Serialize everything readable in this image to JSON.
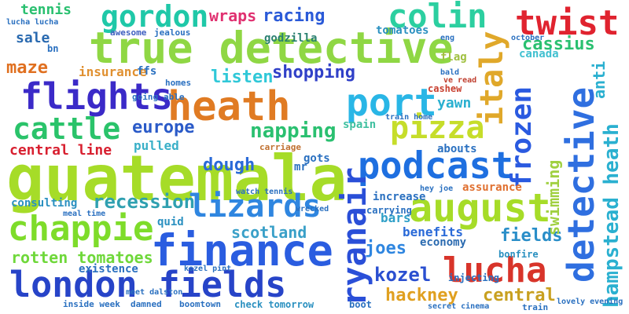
{
  "cloud": {
    "words": [
      {
        "text": "guatemala",
        "color": "#a6dc28"
      },
      {
        "text": "true detective",
        "color": "#8fd744"
      },
      {
        "text": "heath",
        "color": "#e07b23"
      },
      {
        "text": "finance",
        "color": "#2a5de0"
      },
      {
        "text": "london fields",
        "color": "#2744c8"
      },
      {
        "text": "flights",
        "color": "#3b2ac8"
      },
      {
        "text": "podcast",
        "color": "#1e6fe0"
      },
      {
        "text": "august",
        "color": "#a6dc28"
      },
      {
        "text": "port",
        "color": "#29b6e6"
      },
      {
        "text": "pizza",
        "color": "#c6dd2a"
      },
      {
        "text": "lucha",
        "color": "#d8342a"
      },
      {
        "text": "gordon",
        "color": "#1fc8a8"
      },
      {
        "text": "colin",
        "color": "#2ccfa0"
      },
      {
        "text": "twist",
        "color": "#e0232f"
      },
      {
        "text": "chappie",
        "color": "#7edc2a"
      },
      {
        "text": "lizards",
        "color": "#2f86e0"
      },
      {
        "text": "cattle",
        "color": "#2ac36a"
      },
      {
        "text": "ryanair",
        "color": "#2a4fd8"
      },
      {
        "text": "detective",
        "color": "#2f6fe0"
      },
      {
        "text": "frozen",
        "color": "#2a5ae0"
      },
      {
        "text": "italy",
        "color": "#e0a82a"
      },
      {
        "text": "hampstead heath",
        "color": "#2ab0d0"
      },
      {
        "text": "kozel",
        "color": "#2a4fd0"
      },
      {
        "text": "joes",
        "color": "#2f86e0"
      },
      {
        "text": "rotten tomatoes",
        "color": "#6fd83a"
      },
      {
        "text": "recession",
        "color": "#2fa0b0"
      },
      {
        "text": "scotland",
        "color": "#3aa0c8"
      },
      {
        "text": "hackney",
        "color": "#e0a020"
      },
      {
        "text": "central",
        "color": "#c8a020"
      },
      {
        "text": "fields",
        "color": "#2a8ec8"
      },
      {
        "text": "maze",
        "color": "#e07020"
      },
      {
        "text": "europe",
        "color": "#2a5ac8"
      },
      {
        "text": "napping",
        "color": "#2ac070"
      },
      {
        "text": "dough",
        "color": "#2a6ad8"
      },
      {
        "text": "listen",
        "color": "#30c8d8"
      },
      {
        "text": "shopping",
        "color": "#3040c8"
      },
      {
        "text": "central line",
        "color": "#d82030"
      },
      {
        "text": "cassius",
        "color": "#2ac070"
      },
      {
        "text": "racing",
        "color": "#2a5ad8"
      },
      {
        "text": "wraps",
        "color": "#e03070"
      },
      {
        "text": "tennis",
        "color": "#2ac070"
      },
      {
        "text": "sale",
        "color": "#2a6ab0"
      },
      {
        "text": "insurance",
        "color": "#e09030"
      },
      {
        "text": "swimming",
        "color": "#a0d040"
      },
      {
        "text": "anti",
        "color": "#2ab0d0"
      },
      {
        "text": "yawn",
        "color": "#2ab0d0"
      },
      {
        "text": "canada",
        "color": "#40c0d0"
      },
      {
        "text": "assurance",
        "color": "#e07030"
      },
      {
        "text": "bars",
        "color": "#30a0c8"
      },
      {
        "text": "benefits",
        "color": "#2a6ad8"
      },
      {
        "text": "economy",
        "color": "#2a6ab0"
      },
      {
        "text": "pulled",
        "color": "#3ab0c8"
      },
      {
        "text": "consulting",
        "color": "#2a90c0"
      },
      {
        "text": "quid",
        "color": "#2a90c0"
      },
      {
        "text": "existence",
        "color": "#2a70c0"
      },
      {
        "text": "spain",
        "color": "#40c0a0"
      },
      {
        "text": "gots",
        "color": "#2a70c0"
      },
      {
        "text": "abouts",
        "color": "#2a70c0"
      },
      {
        "text": "increase",
        "color": "#2a70c0"
      },
      {
        "text": "carrying",
        "color": "#2a70c0"
      },
      {
        "text": "injecting",
        "color": "#2a70c0"
      },
      {
        "text": "bonfire",
        "color": "#2a90c0"
      },
      {
        "text": "ffs",
        "color": "#2a70c0"
      },
      {
        "text": "cashew",
        "color": "#c84030"
      },
      {
        "text": "flag",
        "color": "#a0c040"
      },
      {
        "text": "tomatoes",
        "color": "#2a90c0"
      },
      {
        "text": "godzilla",
        "color": "#2a8070"
      },
      {
        "text": "awesome",
        "color": "#4060c0"
      },
      {
        "text": "jealous",
        "color": "#2a70c0"
      },
      {
        "text": "going",
        "color": "#2a70c0"
      },
      {
        "text": "able",
        "color": "#2a70c0"
      },
      {
        "text": "homes",
        "color": "#2a70c0"
      },
      {
        "text": "boomtown",
        "color": "#2a70c0"
      },
      {
        "text": "check tomorrow",
        "color": "#2a90c0"
      },
      {
        "text": "watch tennis",
        "color": "#2a70c0"
      },
      {
        "text": "meal time",
        "color": "#2a70c0"
      },
      {
        "text": "inside week",
        "color": "#2a70c0"
      },
      {
        "text": "damned",
        "color": "#2a70c0"
      },
      {
        "text": "hey joe",
        "color": "#2a70c0"
      },
      {
        "text": "lovely evening",
        "color": "#2a70c0"
      },
      {
        "text": "train home",
        "color": "#2a70c0"
      },
      {
        "text": "carriage",
        "color": "#c07030"
      },
      {
        "text": "mr",
        "color": "#2a70c0"
      },
      {
        "text": "eng",
        "color": "#2a70c0"
      },
      {
        "text": "october",
        "color": "#2a70c0"
      },
      {
        "text": "secret cinema",
        "color": "#2a70c0"
      },
      {
        "text": "boot",
        "color": "#2a70c0"
      },
      {
        "text": "train",
        "color": "#2a70c0"
      },
      {
        "text": "ve read",
        "color": "#c04030"
      },
      {
        "text": "bald",
        "color": "#2a70c0"
      },
      {
        "text": "meet dalston",
        "color": "#2a70c0"
      },
      {
        "text": "kozel pint",
        "color": "#2a70c0"
      },
      {
        "text": "wrecked",
        "color": "#2a70c0"
      },
      {
        "text": "bn",
        "color": "#2a70c0"
      },
      {
        "text": "lucha lucha",
        "color": "#2a70c0"
      }
    ]
  }
}
